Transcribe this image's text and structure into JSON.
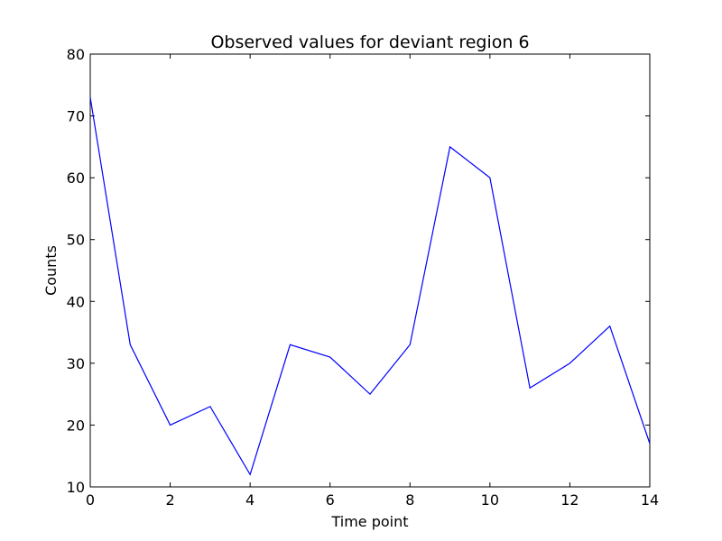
{
  "chart_data": {
    "type": "line",
    "title": "Observed values for deviant region 6",
    "xlabel": "Time point",
    "ylabel": "Counts",
    "xlim": [
      0,
      14
    ],
    "ylim": [
      10,
      80
    ],
    "xticks": [
      0,
      2,
      4,
      6,
      8,
      10,
      12,
      14
    ],
    "yticks": [
      10,
      20,
      30,
      40,
      50,
      60,
      70,
      80
    ],
    "grid": false,
    "series": [
      {
        "color": "#0000ff",
        "x": [
          0,
          1,
          2,
          3,
          4,
          5,
          6,
          7,
          8,
          9,
          10,
          11,
          12,
          13,
          14
        ],
        "y": [
          73,
          33,
          20,
          23,
          12,
          33,
          31,
          25,
          33,
          65,
          60,
          26,
          30,
          36,
          17
        ]
      }
    ]
  }
}
